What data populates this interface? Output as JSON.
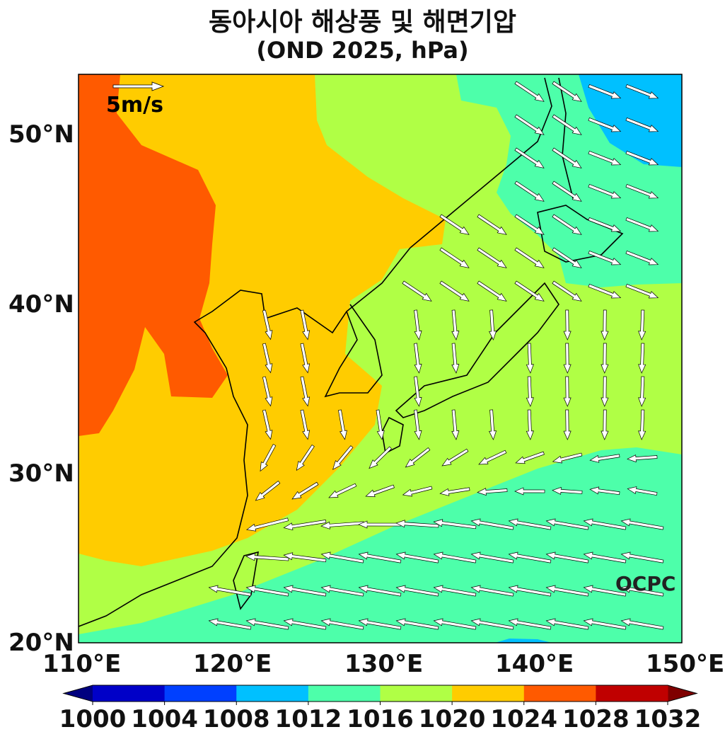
{
  "title": {
    "line1": "동아시아 해상풍 및 해면기압",
    "line2": "(OND 2025, hPa)"
  },
  "map": {
    "lon_range": [
      110,
      150
    ],
    "lat_range": [
      20,
      53.5
    ],
    "lat_ticks": [
      "50°N",
      "40°N",
      "30°N",
      "20°N"
    ],
    "lon_ticks": [
      "110°E",
      "120°E",
      "130°E",
      "140°E",
      "150°E"
    ],
    "reference_vector": "5m/s",
    "watermark": "OCPC"
  },
  "colorbar": {
    "ticks": [
      "1000",
      "1004",
      "1008",
      "1012",
      "1016",
      "1020",
      "1024",
      "1028",
      "1032"
    ],
    "colors": [
      "#0000c8",
      "#0040ff",
      "#00c0ff",
      "#4dffaa",
      "#b0ff45",
      "#ffcc00",
      "#ff5a00",
      "#c00000"
    ],
    "under_color": "#00007f",
    "over_color": "#7f0000",
    "extend": "both"
  }
}
